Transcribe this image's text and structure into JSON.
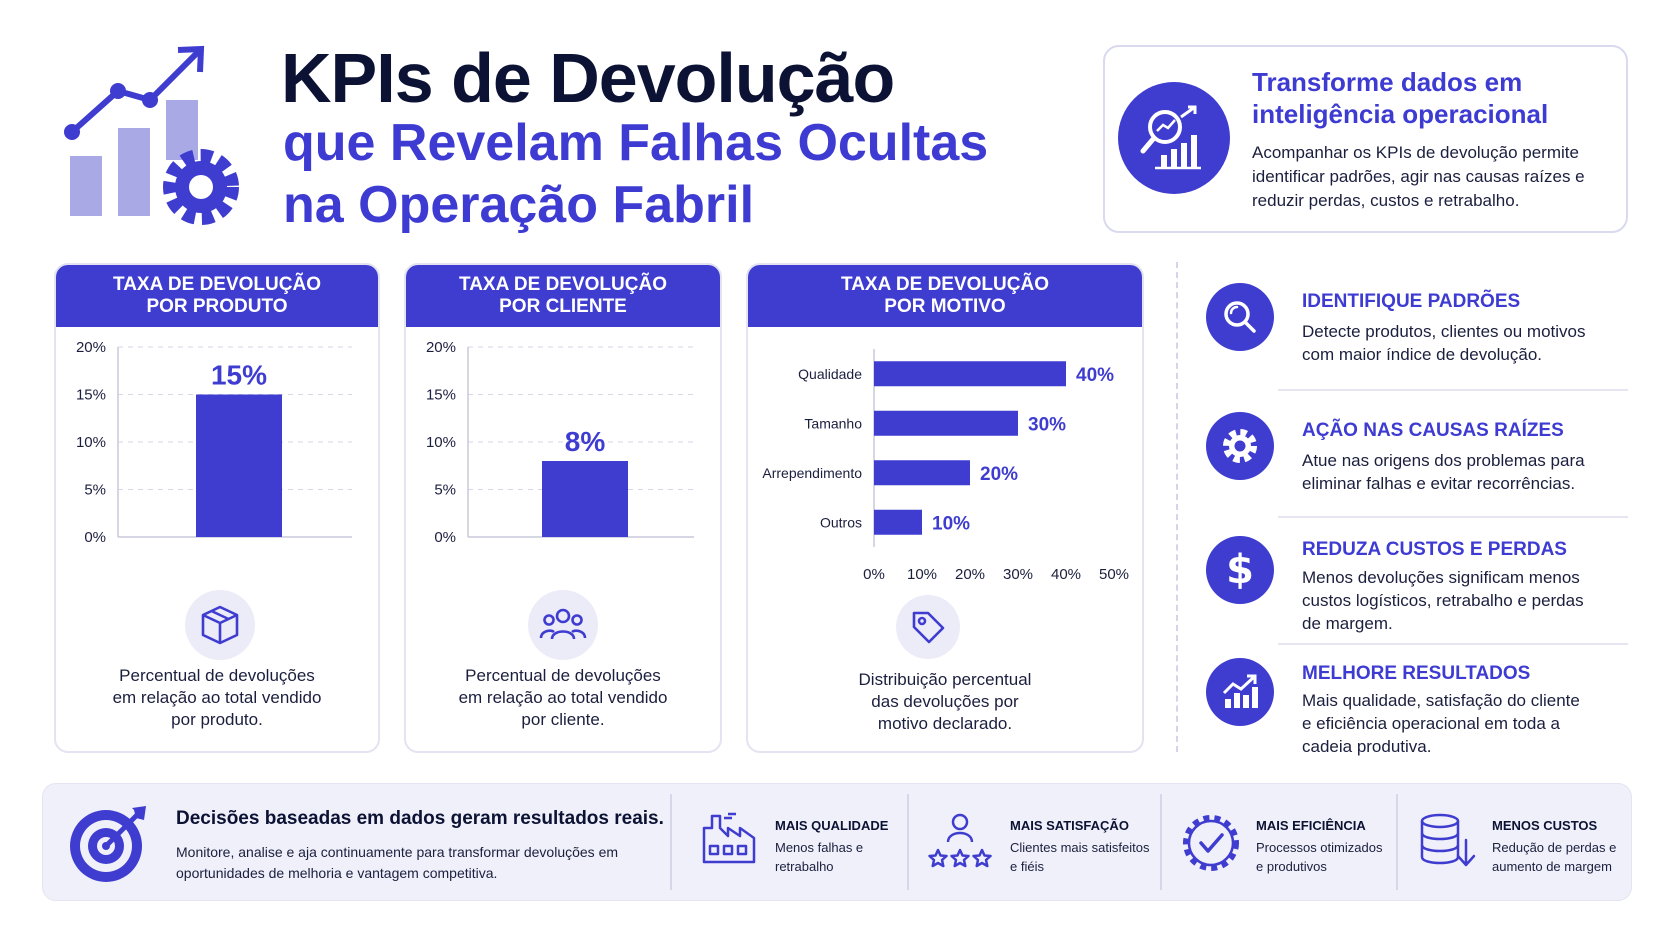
{
  "header": {
    "title_line1": "KPIs de Devolução",
    "title_line2": "que Revelam Falhas Ocultas",
    "title_line3": "na Operação Fabril"
  },
  "intro": {
    "title_line1": "Transforme dados em",
    "title_line2": "inteligência operacional",
    "text": "Acompanhar os KPIs de devolução permite identificar padrões, agir nas causas raízes e reduzir perdas, custos e retrabalho."
  },
  "colors": {
    "accent": "#3f3cd0",
    "dark": "#0c1233",
    "light_bg": "#f0f0fa"
  },
  "cards": [
    {
      "head_line1": "TAXA DE DEVOLUÇÃO",
      "head_line2": "POR PRODUTO",
      "icon": "box-icon",
      "desc_line1": "Percentual de devoluções",
      "desc_line2": "em relação ao total vendido",
      "desc_line3": "por produto."
    },
    {
      "head_line1": "TAXA DE DEVOLUÇÃO",
      "head_line2": "POR CLIENTE",
      "icon": "users-icon",
      "desc_line1": "Percentual de devoluções",
      "desc_line2": "em relação ao total vendido",
      "desc_line3": "por cliente."
    },
    {
      "head_line1": "TAXA DE DEVOLUÇÃO",
      "head_line2": "POR MOTIVO",
      "icon": "tag-icon",
      "desc_line1": "Distribuição percentual",
      "desc_line2": "das devoluções por",
      "desc_line3": "motivo declarado."
    }
  ],
  "chart_data": [
    {
      "type": "bar",
      "categories": [
        ""
      ],
      "values": [
        15
      ],
      "data_labels": [
        "15%"
      ],
      "yticks": [
        "0%",
        "5%",
        "10%",
        "15%",
        "20%"
      ],
      "ylim": [
        0,
        20
      ],
      "grid": true
    },
    {
      "type": "bar",
      "categories": [
        ""
      ],
      "values": [
        8
      ],
      "data_labels": [
        "8%"
      ],
      "yticks": [
        "0%",
        "5%",
        "10%",
        "15%",
        "20%"
      ],
      "ylim": [
        0,
        20
      ],
      "grid": true
    },
    {
      "type": "bar",
      "orientation": "horizontal",
      "categories": [
        "Qualidade",
        "Tamanho",
        "Arrependimento",
        "Outros"
      ],
      "values": [
        40,
        30,
        20,
        10
      ],
      "data_labels": [
        "40%",
        "30%",
        "20%",
        "10%"
      ],
      "xticks": [
        "0%",
        "10%",
        "20%",
        "30%",
        "40%",
        "50%"
      ],
      "xlim": [
        0,
        50
      ]
    }
  ],
  "benefits": [
    {
      "icon": "search-icon",
      "title": "IDENTIFIQUE PADRÕES",
      "line1": "Detecte produtos, clientes ou motivos",
      "line2": "com maior índice de devolução.",
      "line3": ""
    },
    {
      "icon": "gear-icon",
      "title": "AÇÃO NAS CAUSAS RAÍZES",
      "line1": "Atue nas origens dos problemas para",
      "line2": "eliminar falhas e evitar recorrências.",
      "line3": ""
    },
    {
      "icon": "dollar-icon",
      "title": "REDUZA CUSTOS E PERDAS",
      "line1": "Menos devoluções significam menos",
      "line2": "custos logísticos, retrabalho e perdas",
      "line3": "de margem."
    },
    {
      "icon": "growth-chart-icon",
      "title": "MELHORE RESULTADOS",
      "line1": "Mais qualidade, satisfação do cliente",
      "line2": "e eficiência operacional em toda a",
      "line3": "cadeia produtiva."
    }
  ],
  "footer": {
    "title": "Decisões baseadas em dados geram resultados reais.",
    "text_line1": "Monitore, analise e aja continuamente para transformar devoluções em",
    "text_line2": "oportunidades de melhoria e vantagem competitiva.",
    "items": [
      {
        "icon": "factory-icon",
        "title": "MAIS QUALIDADE",
        "line1": "Menos falhas e",
        "line2": "retrabalho"
      },
      {
        "icon": "rating-icon",
        "title": "MAIS SATISFAÇÃO",
        "line1": "Clientes mais satisfeitos",
        "line2": "e fiéis"
      },
      {
        "icon": "badge-check-icon",
        "title": "MAIS EFICIÊNCIA",
        "line1": "Processos otimizados",
        "line2": "e produtivos"
      },
      {
        "icon": "database-down-icon",
        "title": "MENOS CUSTOS",
        "line1": "Redução de perdas e",
        "line2": "aumento de margem"
      }
    ]
  }
}
